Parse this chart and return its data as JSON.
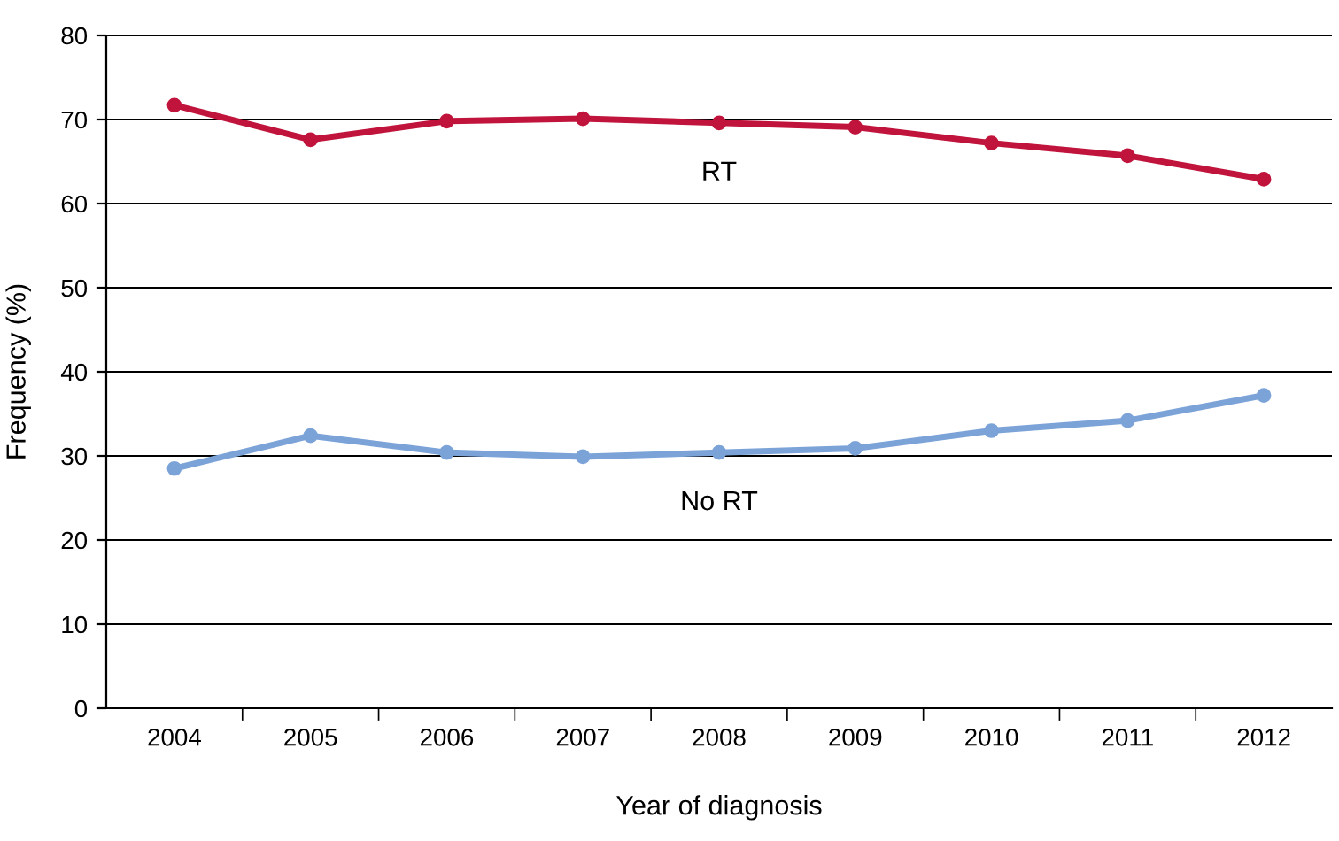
{
  "chart_data": {
    "type": "line",
    "xlabel": "Year of diagnosis",
    "ylabel": "Frequency (%)",
    "categories": [
      "2004",
      "2005",
      "2006",
      "2007",
      "2008",
      "2009",
      "2010",
      "2011",
      "2012"
    ],
    "series": [
      {
        "name": "RT",
        "color": "#c0143c",
        "values": [
          71.7,
          67.6,
          69.8,
          70.1,
          69.6,
          69.1,
          67.2,
          65.7,
          62.9
        ]
      },
      {
        "name": "No RT",
        "color": "#7ba3d8",
        "values": [
          28.5,
          32.4,
          30.4,
          29.9,
          30.4,
          30.9,
          33.0,
          34.2,
          37.2
        ]
      }
    ],
    "ylim": [
      0,
      80
    ],
    "yticks": [
      0,
      10,
      20,
      30,
      40,
      50,
      60,
      70,
      80
    ],
    "grid": "y",
    "marker": "circle",
    "line_style": "solid",
    "legend": false
  }
}
